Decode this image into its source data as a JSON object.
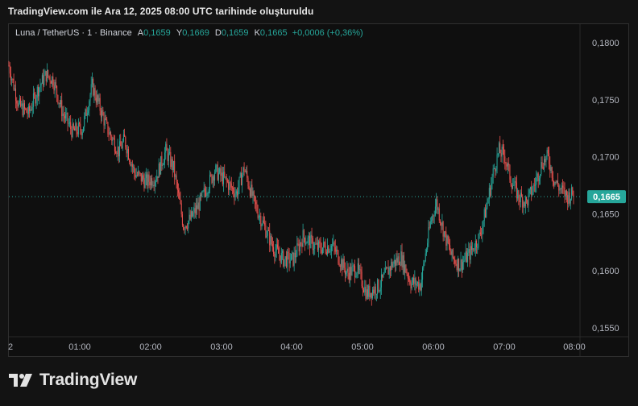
{
  "header": {
    "caption": "TradingView.com ile Ara 12, 2025 08:00 UTC tarihinde oluşturuldu"
  },
  "legend": {
    "symbol": "Luna / TetherUS · 1 · Binance",
    "open_label": "A",
    "open": "0,1659",
    "high_label": "Y",
    "high": "0,1669",
    "low_label": "D",
    "low": "0,1659",
    "close_label": "K",
    "close": "0,1665",
    "change": "+0,0006 (+0,36%)"
  },
  "brand": {
    "name": "TradingView"
  },
  "colors": {
    "up": "#26a69a",
    "down": "#ef5350",
    "last_price_badge": "#26a69a"
  },
  "chart_data": {
    "type": "candlestick",
    "ylim": [
      0.1545,
      0.1805
    ],
    "y_ticks": [
      "0,1800",
      "0,1750",
      "0,1700",
      "0,1650",
      "0,1600",
      "0,1550"
    ],
    "y_tick_values": [
      0.18,
      0.175,
      0.17,
      0.165,
      0.16,
      0.155
    ],
    "x_ticks": [
      "2",
      "01:00",
      "02:00",
      "03:00",
      "04:00",
      "05:00",
      "06:00",
      "07:00",
      "08:00"
    ],
    "last_price": 0.1665,
    "last_price_label": "0,1665",
    "grid": false,
    "close_path": [
      [
        0,
        0.178
      ],
      [
        10,
        0.1745
      ],
      [
        20,
        0.1738
      ],
      [
        30,
        0.176
      ],
      [
        38,
        0.1772
      ],
      [
        45,
        0.1768
      ],
      [
        55,
        0.1738
      ],
      [
        65,
        0.1722
      ],
      [
        75,
        0.1725
      ],
      [
        85,
        0.1762
      ],
      [
        92,
        0.1745
      ],
      [
        100,
        0.1725
      ],
      [
        112,
        0.1705
      ],
      [
        118,
        0.1715
      ],
      [
        128,
        0.1686
      ],
      [
        140,
        0.1678
      ],
      [
        150,
        0.1682
      ],
      [
        160,
        0.1705
      ],
      [
        168,
        0.169
      ],
      [
        178,
        0.164
      ],
      [
        185,
        0.1645
      ],
      [
        195,
        0.166
      ],
      [
        210,
        0.1688
      ],
      [
        220,
        0.168
      ],
      [
        232,
        0.1668
      ],
      [
        240,
        0.169
      ],
      [
        250,
        0.166
      ],
      [
        260,
        0.164
      ],
      [
        270,
        0.162
      ],
      [
        280,
        0.161
      ],
      [
        290,
        0.161
      ],
      [
        300,
        0.163
      ],
      [
        315,
        0.162
      ],
      [
        330,
        0.1622
      ],
      [
        345,
        0.1598
      ],
      [
        355,
        0.1602
      ],
      [
        365,
        0.158
      ],
      [
        378,
        0.1587
      ],
      [
        390,
        0.1605
      ],
      [
        400,
        0.1612
      ],
      [
        410,
        0.159
      ],
      [
        420,
        0.1588
      ],
      [
        430,
        0.1642
      ],
      [
        436,
        0.166
      ],
      [
        445,
        0.163
      ],
      [
        452,
        0.1612
      ],
      [
        460,
        0.1605
      ],
      [
        470,
        0.1615
      ],
      [
        480,
        0.163
      ],
      [
        487,
        0.1655
      ],
      [
        495,
        0.169
      ],
      [
        500,
        0.1705
      ],
      [
        506,
        0.17
      ],
      [
        512,
        0.168
      ],
      [
        520,
        0.1665
      ],
      [
        528,
        0.166
      ],
      [
        536,
        0.1675
      ],
      [
        544,
        0.1695
      ],
      [
        550,
        0.17
      ],
      [
        556,
        0.168
      ],
      [
        562,
        0.1672
      ],
      [
        570,
        0.1665
      ],
      [
        576,
        0.1668
      ]
    ]
  }
}
